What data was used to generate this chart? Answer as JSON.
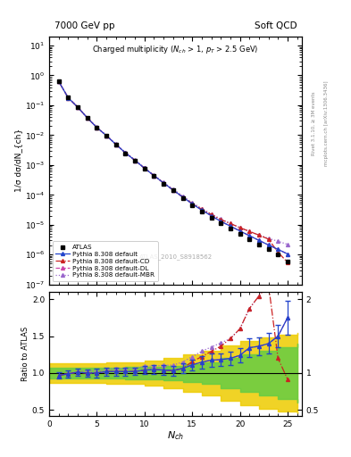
{
  "title_top": "7000 GeV pp",
  "title_right": "Soft QCD",
  "plot_title": "Charged multiplicity ($N_{ch}$ > 1, $p_T$ > 2.5 GeV)",
  "ylabel_main": "1/σ dσ/dN_{ch}",
  "ylabel_ratio": "Ratio to ATLAS",
  "xlabel": "N_{ch}",
  "right_label": "Rivet 3.1.10, ≥ 3M events",
  "right_label2": "mcplots.cern.ch [arXiv:1306.3436]",
  "watermark": "ATLAS_2010_S8918562",
  "atlas_x": [
    1,
    2,
    3,
    4,
    5,
    6,
    7,
    8,
    9,
    10,
    11,
    12,
    13,
    14,
    15,
    16,
    17,
    18,
    19,
    20,
    21,
    22,
    23,
    24,
    25
  ],
  "atlas_y": [
    0.65,
    0.18,
    0.085,
    0.038,
    0.018,
    0.0095,
    0.0048,
    0.0025,
    0.0014,
    0.00075,
    0.00042,
    0.00024,
    0.00014,
    8e-05,
    4.5e-05,
    2.7e-05,
    1.7e-05,
    1.1e-05,
    7.5e-06,
    5e-06,
    3.2e-06,
    2.2e-06,
    1.5e-06,
    1e-06,
    6e-07
  ],
  "atlas_yerr_lo": [
    0.03,
    0.008,
    0.004,
    0.002,
    0.001,
    0.0005,
    0.00025,
    0.00013,
    7e-05,
    4e-05,
    2.5e-05,
    1.5e-05,
    9e-06,
    5e-06,
    3e-06,
    2e-06,
    1.3e-06,
    8e-07,
    6e-07,
    4e-07,
    3e-07,
    2e-07,
    1.5e-07,
    1e-07,
    8e-08
  ],
  "atlas_yerr_hi": [
    0.03,
    0.008,
    0.004,
    0.002,
    0.001,
    0.0005,
    0.00025,
    0.00013,
    7e-05,
    4e-05,
    2.5e-05,
    1.5e-05,
    9e-06,
    5e-06,
    3e-06,
    2e-06,
    1.3e-06,
    8e-07,
    6e-07,
    4e-07,
    3e-07,
    2e-07,
    1.5e-07,
    1e-07,
    8e-08
  ],
  "py_default_y": [
    0.63,
    0.178,
    0.086,
    0.038,
    0.018,
    0.0097,
    0.0049,
    0.00255,
    0.00143,
    0.00078,
    0.00044,
    0.00025,
    0.000145,
    8.5e-05,
    5e-05,
    3.1e-05,
    2e-05,
    1.3e-05,
    9e-06,
    6.2e-06,
    4.3e-06,
    3e-06,
    2.1e-06,
    1.5e-06,
    1.05e-06
  ],
  "py_CD_y": [
    0.63,
    0.178,
    0.086,
    0.038,
    0.018,
    0.0097,
    0.0049,
    0.00255,
    0.00143,
    0.00078,
    0.00044,
    0.00025,
    0.000145,
    8.5e-05,
    5.2e-05,
    3.3e-05,
    2.2e-05,
    1.5e-05,
    1.1e-05,
    8e-06,
    6e-06,
    4.5e-06,
    3.3e-06,
    1.2e-06,
    5.5e-07
  ],
  "py_DL_y": [
    0.63,
    0.178,
    0.086,
    0.038,
    0.018,
    0.0097,
    0.0049,
    0.00255,
    0.00143,
    0.00078,
    0.00044,
    0.00025,
    0.000145,
    8.5e-05,
    5e-05,
    3.1e-05,
    2e-05,
    1.3e-05,
    9e-06,
    6.2e-06,
    4.3e-06,
    3e-06,
    2.1e-06,
    1.5e-06,
    1.05e-06
  ],
  "py_MBR_y": [
    0.63,
    0.179,
    0.087,
    0.039,
    0.0185,
    0.0099,
    0.0051,
    0.00265,
    0.00149,
    0.00082,
    0.00046,
    0.000265,
    0.000155,
    9.2e-05,
    5.5e-05,
    3.5e-05,
    2.3e-05,
    1.55e-05,
    1.1e-05,
    8e-06,
    6e-06,
    4.5e-06,
    3.5e-06,
    2.8e-06,
    2.2e-06
  ],
  "atlas_color": "#000000",
  "py_default_color": "#2244cc",
  "py_CD_color": "#cc2222",
  "py_DL_color": "#cc44aa",
  "py_MBR_color": "#9966cc",
  "band_green": "#66cc44",
  "band_yellow": "#eecc00",
  "ylim_main": [
    1e-07,
    20
  ],
  "ylim_ratio": [
    0.42,
    2.1
  ],
  "xlim": [
    0.0,
    26.5
  ],
  "ratio_band_x": [
    0,
    2,
    4,
    6,
    8,
    10,
    12,
    14,
    16,
    18,
    20,
    22,
    24,
    26
  ],
  "ratio_band_green_lo": [
    0.93,
    0.93,
    0.93,
    0.93,
    0.92,
    0.91,
    0.9,
    0.88,
    0.85,
    0.8,
    0.75,
    0.7,
    0.65,
    0.6
  ],
  "ratio_band_green_hi": [
    1.07,
    1.07,
    1.07,
    1.07,
    1.08,
    1.09,
    1.1,
    1.12,
    1.15,
    1.2,
    1.25,
    1.3,
    1.35,
    1.4
  ],
  "ratio_band_yellow_lo": [
    0.87,
    0.87,
    0.87,
    0.86,
    0.85,
    0.83,
    0.8,
    0.75,
    0.7,
    0.63,
    0.57,
    0.52,
    0.48,
    0.45
  ],
  "ratio_band_yellow_hi": [
    1.13,
    1.13,
    1.13,
    1.14,
    1.15,
    1.17,
    1.2,
    1.25,
    1.3,
    1.37,
    1.43,
    1.48,
    1.52,
    1.55
  ]
}
